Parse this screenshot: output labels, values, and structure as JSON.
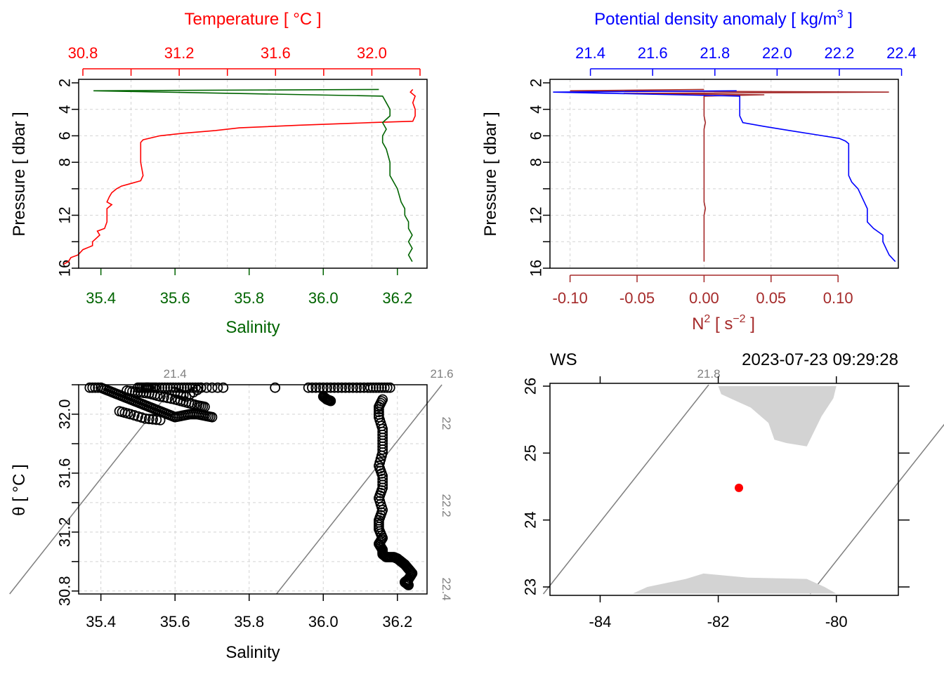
{
  "colors": {
    "temperature": "#ff0000",
    "salinity": "#006400",
    "density": "#0000ff",
    "n2": "#a52a2a",
    "grid": "#d3d3d3",
    "isopycnal": "#808080",
    "land": "#d3d3d3",
    "station": "#ff0000",
    "axis": "#000000"
  },
  "chart_data": [
    {
      "type": "line",
      "panel": "temperature-salinity-profile",
      "top_axis_label": "Temperature [ °C ]",
      "bottom_axis_label": "Salinity",
      "left_axis_label": "Pressure [ dbar ]",
      "temperature_ticks": [
        "30.8",
        "31.2",
        "31.6",
        "32.0"
      ],
      "salinity_ticks": [
        "35.4",
        "35.6",
        "35.8",
        "36.0",
        "36.2"
      ],
      "pressure_ticks": [
        "2",
        "4",
        "6",
        "8",
        "12",
        "16"
      ],
      "temperature_range": [
        30.8,
        32.2
      ],
      "salinity_range": [
        35.34,
        36.28
      ],
      "pressure_range": [
        2,
        16
      ],
      "grid": true,
      "series": [
        {
          "name": "Temperature",
          "pressure": [
            2.5,
            2.7,
            3.0,
            3.5,
            4.0,
            4.5,
            4.9,
            5.0,
            5.2,
            5.4,
            5.6,
            5.8,
            6.0,
            6.3,
            6.5,
            7.0,
            8.0,
            9.0,
            9.4,
            9.6,
            9.8,
            10.0,
            10.3,
            10.6,
            11.0,
            11.2,
            11.5,
            12.0,
            12.5,
            13.0,
            13.2,
            13.5,
            14.0,
            14.3,
            14.6,
            15.0,
            15.2,
            15.5,
            15.7
          ],
          "value": [
            32.17,
            32.16,
            32.18,
            32.17,
            32.18,
            32.18,
            32.17,
            32.0,
            31.7,
            31.45,
            31.35,
            31.22,
            31.12,
            31.05,
            31.04,
            31.04,
            31.04,
            31.05,
            31.04,
            31.0,
            30.96,
            30.94,
            30.92,
            30.91,
            30.9,
            30.92,
            30.9,
            30.9,
            30.9,
            30.89,
            30.86,
            30.87,
            30.84,
            30.84,
            30.8,
            30.78,
            30.75,
            30.74,
            30.72
          ]
        },
        {
          "name": "Salinity",
          "pressure": [
            2.5,
            2.6,
            3.0,
            3.5,
            4.0,
            4.5,
            5.0,
            5.5,
            6.0,
            6.5,
            7.0,
            8.0,
            9.0,
            10.0,
            11.0,
            11.5,
            12.0,
            12.5,
            13.0,
            13.5,
            14.0,
            14.5,
            15.0,
            15.5
          ],
          "value": [
            36.15,
            35.38,
            36.16,
            36.17,
            36.18,
            36.18,
            36.16,
            36.17,
            36.16,
            36.16,
            36.17,
            36.18,
            36.18,
            36.2,
            36.21,
            36.22,
            36.22,
            36.23,
            36.23,
            36.24,
            36.23,
            36.24,
            36.23,
            36.24
          ]
        }
      ]
    },
    {
      "type": "line",
      "panel": "density-n2-profile",
      "top_axis_label": "Potential density anomaly [ kg/m",
      "top_axis_label_sup": "3",
      "top_axis_label_end": " ]",
      "bottom_axis_label": "N",
      "bottom_axis_label_sup": "2",
      "bottom_axis_label_end": " [ s",
      "bottom_axis_label_sup2": "−2",
      "bottom_axis_label_tail": " ]",
      "left_axis_label": "Pressure [ dbar ]",
      "density_ticks": [
        "21.4",
        "21.6",
        "21.8",
        "22.0",
        "22.2",
        "22.4"
      ],
      "n2_ticks": [
        "-0.10",
        "-0.05",
        "0.00",
        "0.05",
        "0.10"
      ],
      "pressure_ticks": [
        "2",
        "4",
        "6",
        "8",
        "12",
        "16"
      ],
      "density_range": [
        21.27,
        22.41
      ],
      "n2_range": [
        -0.115,
        0.145
      ],
      "pressure_range": [
        2,
        16
      ],
      "grid": true,
      "series": [
        {
          "name": "Potential density anomaly",
          "pressure": [
            2.6,
            2.7,
            3.0,
            3.5,
            4.0,
            4.5,
            5.0,
            5.3,
            5.6,
            5.9,
            6.2,
            6.4,
            6.6,
            7.0,
            8.0,
            9.0,
            9.5,
            10.0,
            10.5,
            11.0,
            11.5,
            12.0,
            12.5,
            13.0,
            13.5,
            14.0,
            14.5,
            15.0,
            15.5
          ],
          "value": [
            21.87,
            21.28,
            21.88,
            21.88,
            21.88,
            21.88,
            21.89,
            21.96,
            22.04,
            22.12,
            22.2,
            22.22,
            22.23,
            22.23,
            22.23,
            22.23,
            22.24,
            22.26,
            22.27,
            22.28,
            22.29,
            22.29,
            22.29,
            22.31,
            22.34,
            22.34,
            22.35,
            22.36,
            22.38
          ]
        },
        {
          "name": "N2",
          "pressure": [
            2.5,
            2.6,
            2.7,
            2.8,
            2.9,
            3.0,
            3.5,
            4.0,
            4.5,
            5.0,
            5.5,
            6.0,
            7.0,
            8.0,
            9.0,
            10.0,
            11.0,
            11.5,
            12.0,
            13.0,
            14.0,
            15.0,
            15.5
          ],
          "value": [
            0.0,
            -0.1,
            0.138,
            -0.06,
            0.045,
            0.0,
            0.0,
            0.0,
            0.0,
            0.001,
            0.0,
            0.0,
            0.0,
            0.0,
            0.0,
            0.0,
            0.0,
            0.001,
            0.0,
            0.0,
            0.0,
            0.0,
            0.0
          ]
        }
      ]
    },
    {
      "type": "scatter",
      "panel": "ts-diagram",
      "xlabel": "Salinity",
      "ylabel": "θ [ °C ]",
      "x_ticks": [
        "35.4",
        "35.6",
        "35.8",
        "36.0",
        "36.2"
      ],
      "y_ticks": [
        "30.8",
        "31.2",
        "31.6",
        "32.0"
      ],
      "xlim": [
        35.34,
        36.28
      ],
      "ylim": [
        30.78,
        32.2
      ],
      "grid": true,
      "isopycnal_labels_top": [
        "21.4",
        "21.6",
        "21.8"
      ],
      "isopycnal_labels_right": [
        "22",
        "22.2",
        "22.4"
      ],
      "isopycnals": [
        21.4,
        21.6,
        21.8,
        22.0,
        22.2,
        22.4
      ],
      "points": {
        "salinity": [
          35.37,
          35.4,
          35.42,
          35.44,
          35.46,
          35.48,
          35.5,
          35.52,
          35.54,
          35.56,
          35.58,
          35.6,
          35.62,
          35.64,
          35.66,
          35.68,
          35.7,
          35.47,
          35.5,
          35.53,
          35.56,
          35.6,
          35.63,
          35.66,
          35.68,
          35.5,
          35.52,
          35.53,
          35.55,
          35.58,
          35.61,
          35.64,
          35.67,
          35.45,
          35.48,
          35.52,
          35.56,
          35.6,
          35.63,
          35.67,
          35.73,
          35.87,
          35.96,
          36.0,
          36.04,
          36.08,
          36.12,
          36.15,
          36.18,
          36.0,
          36.01,
          36.02,
          36.16,
          36.15,
          36.15,
          36.16,
          36.16,
          36.16,
          36.15,
          36.16,
          36.16,
          36.15,
          36.16,
          36.15,
          36.15,
          36.16,
          36.15,
          36.16,
          36.16,
          36.17,
          36.19,
          36.2,
          36.21,
          36.22,
          36.23,
          36.24,
          36.23,
          36.22,
          36.23
        ],
        "theta": [
          32.18,
          32.18,
          32.16,
          32.14,
          32.12,
          32.1,
          32.08,
          32.06,
          32.04,
          32.02,
          32.0,
          31.98,
          31.99,
          32.0,
          32.0,
          31.99,
          31.98,
          32.16,
          32.15,
          32.14,
          32.12,
          32.1,
          32.08,
          32.06,
          32.05,
          32.18,
          32.18,
          32.18,
          32.18,
          32.18,
          32.18,
          32.18,
          32.18,
          32.02,
          32.0,
          31.97,
          31.96,
          32.15,
          32.12,
          32.18,
          32.18,
          32.18,
          32.18,
          32.18,
          32.18,
          32.18,
          32.18,
          32.18,
          32.18,
          32.12,
          32.1,
          32.09,
          32.1,
          32.05,
          31.98,
          31.9,
          31.82,
          31.74,
          31.65,
          31.58,
          31.5,
          31.43,
          31.35,
          31.28,
          31.22,
          31.16,
          31.12,
          31.08,
          31.05,
          31.03,
          31.03,
          31.02,
          31.0,
          30.98,
          30.95,
          30.92,
          30.88,
          30.86,
          30.84
        ]
      }
    },
    {
      "type": "map",
      "panel": "station-map",
      "station_label": "WS",
      "timestamp": "2023-07-23 09:29:28",
      "x_ticks": [
        "-84",
        "-82",
        "-80"
      ],
      "y_ticks": [
        "23",
        "24",
        "25",
        "26"
      ],
      "lon_range": [
        -84.85,
        -78.95
      ],
      "lat_range": [
        22.9,
        26.0
      ],
      "station": {
        "lon": -81.65,
        "lat": 24.48
      },
      "land_north": {
        "lon": [
          -82.0,
          -80.0,
          -80.05,
          -80.25,
          -80.5,
          -80.85,
          -81.05,
          -81.15,
          -81.45,
          -81.75,
          -81.95,
          -82.0
        ],
        "lat": [
          26.0,
          26.0,
          25.82,
          25.55,
          25.1,
          25.15,
          25.2,
          25.45,
          25.68,
          25.8,
          25.88,
          26.0
        ]
      },
      "land_south": {
        "lon": [
          -83.45,
          -83.2,
          -82.55,
          -82.25,
          -81.5,
          -80.5,
          -80.2,
          -80.0,
          -83.45
        ],
        "lat": [
          22.9,
          23.0,
          23.12,
          23.2,
          23.14,
          23.12,
          23.0,
          22.9,
          22.9
        ]
      }
    }
  ]
}
